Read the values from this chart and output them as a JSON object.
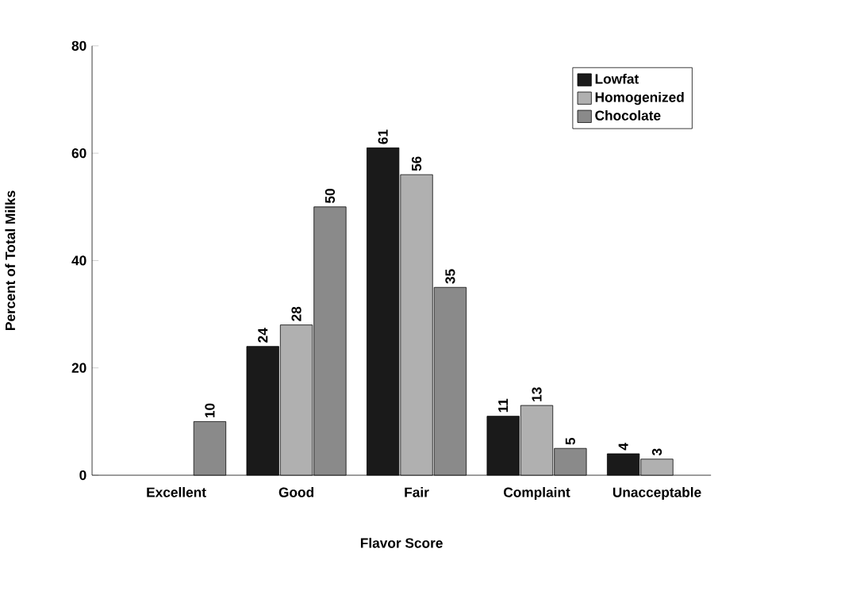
{
  "chart_data": {
    "type": "bar",
    "xlabel": "Flavor Score",
    "ylabel": "Percent of Total Milks",
    "categories": [
      "Excellent",
      "Good",
      "Fair",
      "Complaint",
      "Unacceptable"
    ],
    "series": [
      {
        "name": "Lowfat",
        "color": "#1a1a1a",
        "values": [
          null,
          24,
          61,
          11,
          4
        ]
      },
      {
        "name": "Homogenized",
        "color": "#b0b0b0",
        "values": [
          null,
          28,
          56,
          13,
          3
        ]
      },
      {
        "name": "Chocolate",
        "color": "#8a8a8a",
        "values": [
          10,
          50,
          35,
          5,
          null
        ]
      }
    ],
    "ylim": [
      0,
      80
    ],
    "yticks": [
      0,
      20,
      40,
      60,
      80
    ],
    "legend": "top right",
    "data_labels": true
  }
}
